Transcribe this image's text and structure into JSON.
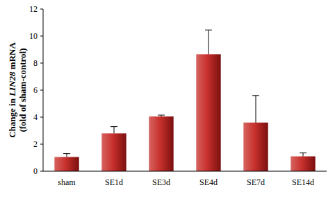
{
  "chart_data": {
    "type": "bar",
    "y_label": "Change in LIN28 mRNA (fold of sham-control)",
    "categories": [
      "sham",
      "SE1d",
      "SE3d",
      "SE4d",
      "SE7d",
      "SE14d"
    ],
    "values": [
      1.05,
      2.8,
      4.05,
      8.65,
      3.6,
      1.1
    ],
    "errors": [
      0.25,
      0.5,
      0.1,
      1.8,
      2.0,
      0.25
    ],
    "color": "#c8302c",
    "ylim": [
      0,
      12
    ],
    "yticks": [
      0,
      2,
      4,
      6,
      8,
      10,
      12
    ],
    "grid": false
  }
}
